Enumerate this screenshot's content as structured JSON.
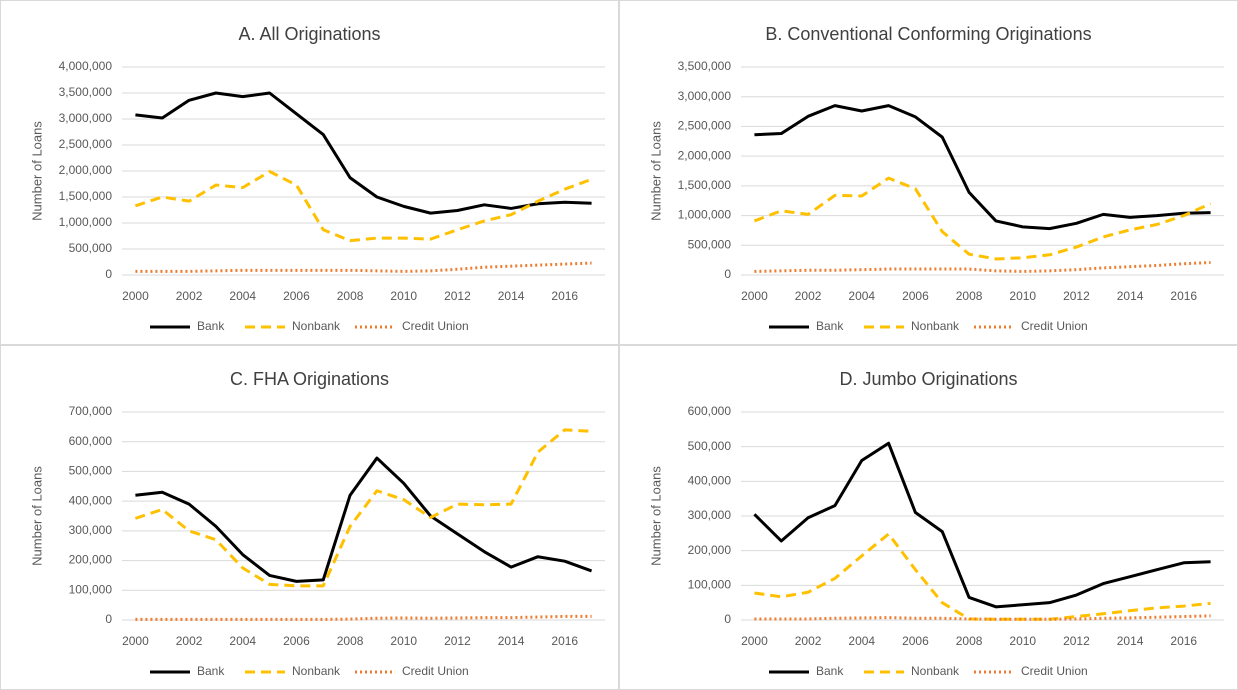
{
  "chart_data": [
    {
      "type": "line",
      "title": "A. All Originations",
      "y_label": "Number of Loans",
      "x": [
        2000,
        2001,
        2002,
        2003,
        2004,
        2005,
        2006,
        2007,
        2008,
        2009,
        2010,
        2011,
        2012,
        2013,
        2014,
        2015,
        2016,
        2017
      ],
      "xlim": [
        2000,
        2017
      ],
      "xticks": [
        2000,
        2002,
        2004,
        2006,
        2008,
        2010,
        2012,
        2014,
        2016
      ],
      "ylim": [
        0,
        4000000
      ],
      "yticks": [
        0,
        {
          "value": 500000,
          "label": "500,000"
        },
        {
          "value": 1000000,
          "label": "1,000,000"
        },
        {
          "value": 1500000,
          "label": "1,500,000"
        },
        {
          "value": 2000000,
          "label": "2,000,000"
        },
        {
          "value": 2500000,
          "label": "2,500,000"
        },
        {
          "value": 3000000,
          "label": "3,000,000"
        },
        {
          "value": 3500000,
          "label": "3,500,000"
        },
        {
          "value": 4000000,
          "label": "4,000,000"
        }
      ],
      "grid": true,
      "series": [
        {
          "name": "Bank",
          "color": "#000000",
          "style": "solid",
          "values": [
            3080000,
            3020000,
            3360000,
            3500000,
            3430000,
            3500000,
            3100000,
            2700000,
            1870000,
            1500000,
            1320000,
            1190000,
            1240000,
            1350000,
            1280000,
            1370000,
            1400000,
            1380000
          ]
        },
        {
          "name": "Nonbank",
          "color": "#ffc000",
          "style": "dashed",
          "values": [
            1330000,
            1500000,
            1420000,
            1730000,
            1680000,
            1990000,
            1730000,
            870000,
            660000,
            710000,
            710000,
            690000,
            870000,
            1040000,
            1160000,
            1420000,
            1650000,
            1840000
          ]
        },
        {
          "name": "Credit Union",
          "color": "#ed7d31",
          "style": "dotted",
          "values": [
            70000,
            70000,
            70000,
            80000,
            90000,
            90000,
            90000,
            90000,
            90000,
            80000,
            70000,
            80000,
            110000,
            150000,
            170000,
            190000,
            210000,
            230000
          ]
        }
      ]
    },
    {
      "type": "line",
      "title": "B. Conventional Conforming Originations",
      "y_label": "Number of Loans",
      "x": [
        2000,
        2001,
        2002,
        2003,
        2004,
        2005,
        2006,
        2007,
        2008,
        2009,
        2010,
        2011,
        2012,
        2013,
        2014,
        2015,
        2016,
        2017
      ],
      "xlim": [
        2000,
        2017
      ],
      "xticks": [
        2000,
        2002,
        2004,
        2006,
        2008,
        2010,
        2012,
        2014,
        2016
      ],
      "ylim": [
        0,
        3500000
      ],
      "yticks": [
        0,
        {
          "value": 500000,
          "label": "500,000"
        },
        {
          "value": 1000000,
          "label": "1,000,000"
        },
        {
          "value": 1500000,
          "label": "1,500,000"
        },
        {
          "value": 2000000,
          "label": "2,000,000"
        },
        {
          "value": 2500000,
          "label": "2,500,000"
        },
        {
          "value": 3000000,
          "label": "3,000,000"
        },
        {
          "value": 3500000,
          "label": "3,500,000"
        }
      ],
      "grid": true,
      "series": [
        {
          "name": "Bank",
          "color": "#000000",
          "style": "solid",
          "values": [
            2360000,
            2380000,
            2670000,
            2850000,
            2760000,
            2850000,
            2660000,
            2320000,
            1390000,
            910000,
            810000,
            780000,
            870000,
            1020000,
            970000,
            1000000,
            1040000,
            1050000
          ]
        },
        {
          "name": "Nonbank",
          "color": "#ffc000",
          "style": "dashed",
          "values": [
            910000,
            1080000,
            1020000,
            1340000,
            1330000,
            1630000,
            1450000,
            730000,
            350000,
            270000,
            290000,
            340000,
            470000,
            640000,
            760000,
            850000,
            1000000,
            1200000
          ]
        },
        {
          "name": "Credit Union",
          "color": "#ed7d31",
          "style": "dotted",
          "values": [
            60000,
            70000,
            80000,
            80000,
            90000,
            100000,
            100000,
            100000,
            100000,
            70000,
            60000,
            70000,
            90000,
            120000,
            140000,
            160000,
            190000,
            210000
          ]
        }
      ]
    },
    {
      "type": "line",
      "title": "C. FHA Originations",
      "y_label": "Number of Loans",
      "x": [
        2000,
        2001,
        2002,
        2003,
        2004,
        2005,
        2006,
        2007,
        2008,
        2009,
        2010,
        2011,
        2012,
        2013,
        2014,
        2015,
        2016,
        2017
      ],
      "xlim": [
        2000,
        2017
      ],
      "xticks": [
        2000,
        2002,
        2004,
        2006,
        2008,
        2010,
        2012,
        2014,
        2016
      ],
      "ylim": [
        0,
        700000
      ],
      "yticks": [
        0,
        {
          "value": 100000,
          "label": "100,000"
        },
        {
          "value": 200000,
          "label": "200,000"
        },
        {
          "value": 300000,
          "label": "300,000"
        },
        {
          "value": 400000,
          "label": "400,000"
        },
        {
          "value": 500000,
          "label": "500,000"
        },
        {
          "value": 600000,
          "label": "600,000"
        },
        {
          "value": 700000,
          "label": "700,000"
        }
      ],
      "grid": true,
      "series": [
        {
          "name": "Bank",
          "color": "#000000",
          "style": "solid",
          "values": [
            420000,
            430000,
            390000,
            315000,
            220000,
            150000,
            130000,
            135000,
            420000,
            545000,
            460000,
            350000,
            290000,
            230000,
            178000,
            213000,
            198000,
            165000
          ]
        },
        {
          "name": "Nonbank",
          "color": "#ffc000",
          "style": "dashed",
          "values": [
            342000,
            372000,
            300000,
            270000,
            175000,
            120000,
            115000,
            115000,
            315000,
            435000,
            405000,
            345000,
            390000,
            388000,
            390000,
            565000,
            640000,
            635000
          ]
        },
        {
          "name": "Credit Union",
          "color": "#ed7d31",
          "style": "dotted",
          "values": [
            2000,
            2000,
            2000,
            2000,
            2000,
            2000,
            2000,
            2000,
            3000,
            6000,
            7000,
            6000,
            7000,
            8000,
            8000,
            10000,
            12000,
            12000
          ]
        }
      ]
    },
    {
      "type": "line",
      "title": "D. Jumbo Originations",
      "y_label": "Number of Loans",
      "x": [
        2000,
        2001,
        2002,
        2003,
        2004,
        2005,
        2006,
        2007,
        2008,
        2009,
        2010,
        2011,
        2012,
        2013,
        2014,
        2015,
        2016,
        2017
      ],
      "xlim": [
        2000,
        2017
      ],
      "xticks": [
        2000,
        2002,
        2004,
        2006,
        2008,
        2010,
        2012,
        2014,
        2016
      ],
      "ylim": [
        0,
        600000
      ],
      "yticks": [
        0,
        {
          "value": 100000,
          "label": "100,000"
        },
        {
          "value": 200000,
          "label": "200,000"
        },
        {
          "value": 300000,
          "label": "300,000"
        },
        {
          "value": 400000,
          "label": "400,000"
        },
        {
          "value": 500000,
          "label": "500,000"
        },
        {
          "value": 600000,
          "label": "600,000"
        }
      ],
      "grid": true,
      "series": [
        {
          "name": "Bank",
          "color": "#000000",
          "style": "solid",
          "values": [
            305000,
            228000,
            295000,
            330000,
            460000,
            510000,
            310000,
            255000,
            65000,
            38000,
            44000,
            50000,
            72000,
            105000,
            125000,
            145000,
            165000,
            168000
          ]
        },
        {
          "name": "Nonbank",
          "color": "#ffc000",
          "style": "dashed",
          "values": [
            78000,
            67000,
            80000,
            120000,
            185000,
            248000,
            145000,
            50000,
            3000,
            2000,
            2000,
            2000,
            10000,
            18000,
            27000,
            35000,
            40000,
            48000
          ]
        },
        {
          "name": "Credit Union",
          "color": "#ed7d31",
          "style": "dotted",
          "values": [
            3000,
            3000,
            3000,
            5000,
            6000,
            7000,
            5000,
            5000,
            3000,
            2000,
            2000,
            2000,
            3000,
            5000,
            6000,
            8000,
            10000,
            12000
          ]
        }
      ]
    }
  ]
}
